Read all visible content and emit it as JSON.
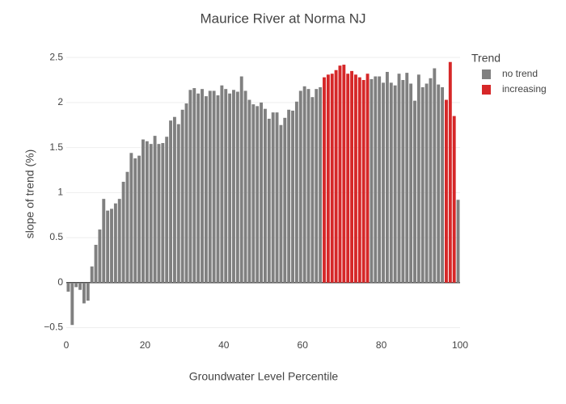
{
  "chart_data": {
    "type": "bar",
    "title": "Maurice River at Norma NJ",
    "xlabel": "Groundwater Level Percentile",
    "ylabel": "slope of trend (%)",
    "legend_title": "Trend",
    "legend": "right",
    "grid": true,
    "x": [
      0.5,
      1.5,
      2.5,
      3.5,
      4.5,
      5.5,
      6.5,
      7.5,
      8.5,
      9.5,
      10.5,
      11.5,
      12.5,
      13.5,
      14.5,
      15.5,
      16.5,
      17.5,
      18.5,
      19.5,
      20.5,
      21.5,
      22.5,
      23.5,
      24.5,
      25.5,
      26.5,
      27.5,
      28.5,
      29.5,
      30.5,
      31.5,
      32.5,
      33.5,
      34.5,
      35.5,
      36.5,
      37.5,
      38.5,
      39.5,
      40.5,
      41.5,
      42.5,
      43.5,
      44.5,
      45.5,
      46.5,
      47.5,
      48.5,
      49.5,
      50.5,
      51.5,
      52.5,
      53.5,
      54.5,
      55.5,
      56.5,
      57.5,
      58.5,
      59.5,
      60.5,
      61.5,
      62.5,
      63.5,
      64.5,
      65.5,
      66.5,
      67.5,
      68.5,
      69.5,
      70.5,
      71.5,
      72.5,
      73.5,
      74.5,
      75.5,
      76.5,
      77.5,
      78.5,
      79.5,
      80.5,
      81.5,
      82.5,
      83.5,
      84.5,
      85.5,
      86.5,
      87.5,
      88.5,
      89.5,
      90.5,
      91.5,
      92.5,
      93.5,
      94.5,
      95.5,
      96.5,
      97.5,
      98.5,
      99.5
    ],
    "series": [
      {
        "name": "no trend",
        "color": "#808080",
        "values": [
          -0.1,
          -0.47,
          -0.05,
          -0.08,
          -0.23,
          -0.2,
          0.18,
          0.42,
          0.59,
          0.93,
          0.8,
          0.82,
          0.88,
          0.93,
          1.12,
          1.23,
          1.44,
          1.38,
          1.41,
          1.59,
          1.57,
          1.54,
          1.63,
          1.54,
          1.55,
          1.62,
          1.8,
          1.84,
          1.76,
          1.92,
          1.99,
          2.14,
          2.16,
          2.1,
          2.15,
          2.07,
          2.13,
          2.13,
          2.08,
          2.19,
          2.15,
          2.1,
          2.14,
          2.12,
          2.29,
          2.13,
          2.03,
          1.98,
          1.96,
          2.0,
          1.93,
          1.82,
          1.89,
          1.89,
          1.75,
          1.83,
          1.92,
          1.91,
          2.01,
          2.13,
          2.18,
          2.15,
          2.06,
          2.15,
          2.17,
          null,
          null,
          null,
          null,
          null,
          null,
          null,
          null,
          null,
          null,
          null,
          null,
          2.26,
          2.29,
          2.29,
          2.22,
          2.34,
          2.22,
          2.19,
          2.32,
          2.25,
          2.33,
          2.21,
          2.02,
          2.31,
          2.17,
          2.21,
          2.27,
          2.38,
          2.2,
          2.17,
          null,
          null,
          null,
          0.92
        ]
      },
      {
        "name": "increasing",
        "color": "#d62728",
        "values": [
          null,
          null,
          null,
          null,
          null,
          null,
          null,
          null,
          null,
          null,
          null,
          null,
          null,
          null,
          null,
          null,
          null,
          null,
          null,
          null,
          null,
          null,
          null,
          null,
          null,
          null,
          null,
          null,
          null,
          null,
          null,
          null,
          null,
          null,
          null,
          null,
          null,
          null,
          null,
          null,
          null,
          null,
          null,
          null,
          null,
          null,
          null,
          null,
          null,
          null,
          null,
          null,
          null,
          null,
          null,
          null,
          null,
          null,
          null,
          null,
          null,
          null,
          null,
          null,
          null,
          2.28,
          2.31,
          2.32,
          2.36,
          2.41,
          2.42,
          2.32,
          2.35,
          2.31,
          2.28,
          2.25,
          2.32,
          null,
          null,
          null,
          null,
          null,
          null,
          null,
          null,
          null,
          null,
          null,
          null,
          null,
          null,
          null,
          null,
          null,
          null,
          null,
          2.03,
          2.45,
          1.85,
          null
        ]
      }
    ],
    "xlim": [
      0,
      100
    ],
    "xticks": [
      0,
      20,
      40,
      60,
      80,
      100
    ],
    "ylim": [
      -0.54,
      2.6
    ],
    "yticks": [
      {
        "value": -0.5,
        "label": "−0.5"
      },
      0,
      0.5,
      1,
      1.5,
      2,
      2.5
    ]
  }
}
